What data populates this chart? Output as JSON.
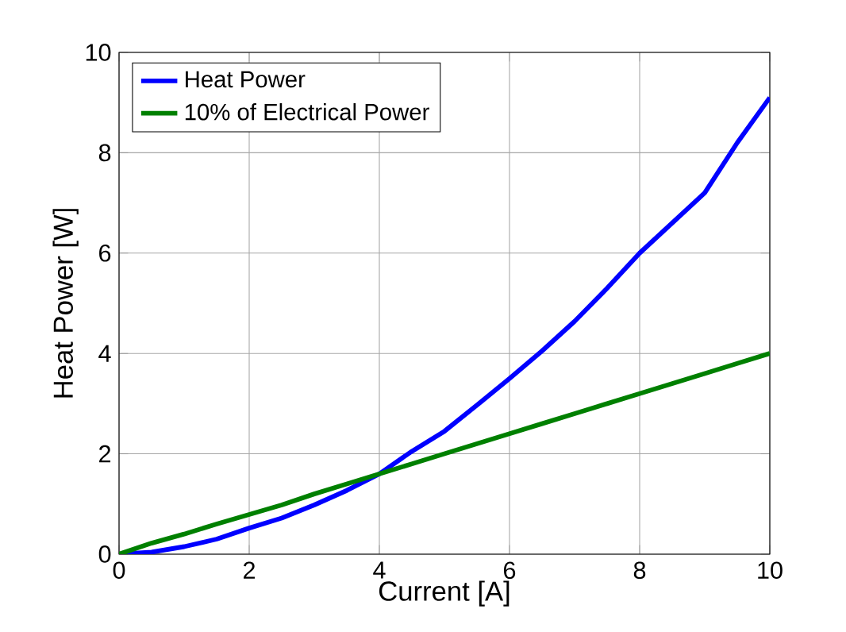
{
  "chart_data": {
    "type": "line",
    "xlabel": "Current [A]",
    "ylabel": "Heat Power [W]",
    "x": [
      0,
      0.5,
      1,
      1.5,
      2,
      2.5,
      3,
      3.5,
      4,
      4.5,
      5,
      5.5,
      6,
      6.5,
      7,
      7.5,
      8,
      8.5,
      9,
      9.5,
      10
    ],
    "series": [
      {
        "name": "Heat Power",
        "color": "#0000ff",
        "values": [
          0,
          0.04,
          0.15,
          0.3,
          0.52,
          0.72,
          0.98,
          1.27,
          1.6,
          2.05,
          2.45,
          2.97,
          3.5,
          4.05,
          4.64,
          5.3,
          6.0,
          6.6,
          7.2,
          8.2,
          9.1
        ]
      },
      {
        "name": "10% of Electrical Power",
        "color": "#008000",
        "values": [
          0,
          0.22,
          0.4,
          0.6,
          0.79,
          0.98,
          1.2,
          1.4,
          1.6,
          1.8,
          2.0,
          2.2,
          2.4,
          2.6,
          2.8,
          3.0,
          3.2,
          3.4,
          3.6,
          3.8,
          4.0
        ]
      }
    ],
    "xlim": [
      0,
      10
    ],
    "ylim": [
      0,
      10
    ],
    "xticks": [
      0,
      2,
      4,
      6,
      8,
      10
    ],
    "yticks": [
      0,
      2,
      4,
      6,
      8,
      10
    ],
    "grid": true,
    "legend": "top left",
    "line_style": "solid",
    "marker": "none"
  }
}
